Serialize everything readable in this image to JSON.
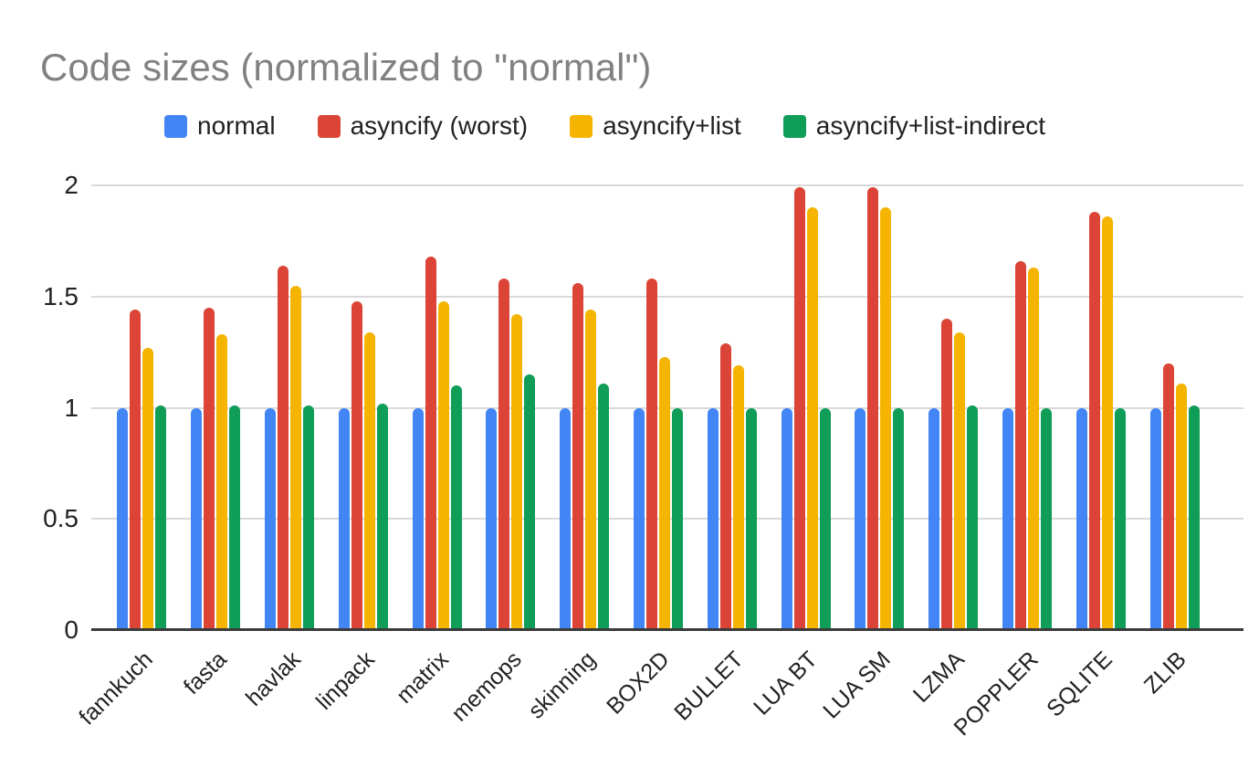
{
  "chart_data": {
    "type": "bar",
    "title": "Code sizes (normalized to \"normal\")",
    "xlabel": "",
    "ylabel": "",
    "ylim": [
      0,
      2
    ],
    "yticks": [
      0,
      0.5,
      1,
      1.5,
      2
    ],
    "ytick_labels": [
      "0",
      "0.5",
      "1",
      "1.5",
      "2"
    ],
    "grid": true,
    "legend_position": "top",
    "categories": [
      "fannkuch",
      "fasta",
      "havlak",
      "linpack",
      "matrix",
      "memops",
      "skinning",
      "BOX2D",
      "BULLET",
      "LUA BT",
      "LUA SM",
      "LZMA",
      "POPPLER",
      "SQLITE",
      "ZLIB"
    ],
    "series": [
      {
        "name": "normal",
        "color": "#4285F4",
        "values": [
          1.0,
          1.0,
          1.0,
          1.0,
          1.0,
          1.0,
          1.0,
          1.0,
          1.0,
          1.0,
          1.0,
          1.0,
          1.0,
          1.0,
          1.0
        ]
      },
      {
        "name": "asyncify (worst)",
        "color": "#DB4437",
        "values": [
          1.44,
          1.45,
          1.64,
          1.48,
          1.68,
          1.58,
          1.56,
          1.58,
          1.29,
          1.99,
          1.99,
          1.4,
          1.66,
          1.88,
          1.2
        ]
      },
      {
        "name": "asyncify+list",
        "color": "#F4B400",
        "values": [
          1.27,
          1.33,
          1.55,
          1.34,
          1.48,
          1.42,
          1.44,
          1.23,
          1.19,
          1.9,
          1.9,
          1.34,
          1.63,
          1.86,
          1.11
        ]
      },
      {
        "name": "asyncify+list-indirect",
        "color": "#0F9D58",
        "values": [
          1.01,
          1.01,
          1.01,
          1.02,
          1.1,
          1.15,
          1.11,
          1.0,
          1.0,
          1.0,
          1.0,
          1.01,
          1.0,
          1.0,
          1.01
        ]
      }
    ]
  },
  "layout_colors": {
    "gridline": "#d9d9d9",
    "axis_line": "#3b3b3b",
    "title_text": "#818181",
    "tick_text": "#222222",
    "legend_text": "#212121",
    "background": "#ffffff"
  }
}
